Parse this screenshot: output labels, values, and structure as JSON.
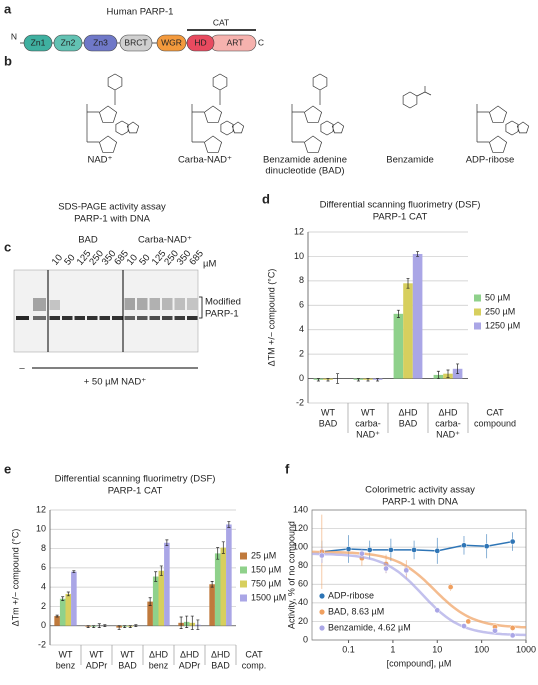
{
  "panel_labels": [
    "a",
    "b",
    "c",
    "d",
    "e",
    "f"
  ],
  "domain_map": {
    "title": "Human PARP-1",
    "n_term": "N",
    "c_term": "C",
    "domains": [
      "Zn1",
      "Zn2",
      "Zn3",
      "BRCT",
      "WGR",
      "HD",
      "ART"
    ],
    "region": "CAT"
  },
  "structures": {
    "names": [
      [
        "NAD⁺"
      ],
      [
        "Carba-NAD⁺"
      ],
      [
        "Benzamide adenine",
        "dinucleotide (BAD)"
      ],
      [
        "Benzamide"
      ],
      [
        "ADP-ribose"
      ]
    ]
  },
  "gel": {
    "title": [
      "SDS-PAGE activity assay",
      "PARP-1 with DNA"
    ],
    "groups": [
      "BAD",
      "Carba-NAD⁺"
    ],
    "concentrations": [
      10,
      50,
      125,
      250,
      350,
      685
    ],
    "unit": "µM",
    "band_labels": [
      "Modified",
      "PARP-1"
    ],
    "control": "–",
    "treatment": "+ 50 µM NAD⁺"
  },
  "chart_data": [
    {
      "type": "bar",
      "title": [
        "Differential scanning fluorimetry (DSF)",
        "PARP-1 CAT"
      ],
      "ylabel": "ΔTM +/− compound (°C)",
      "xlabel": [
        "CAT",
        "compound"
      ],
      "categories": [
        [
          "WT",
          "BAD"
        ],
        [
          "WT",
          "carba-",
          "NAD⁺"
        ],
        [
          "ΔHD",
          "BAD"
        ],
        [
          "ΔHD",
          "carba-",
          "NAD⁺"
        ]
      ],
      "series": [
        {
          "name": "50 µM",
          "color": "#8fd18b",
          "values": [
            -0.1,
            -0.1,
            5.3,
            0.3
          ],
          "errors": [
            0.1,
            0.1,
            0.3,
            0.3
          ]
        },
        {
          "name": "250 µM",
          "color": "#d7cf5e",
          "values": [
            -0.1,
            -0.1,
            7.8,
            0.4
          ],
          "errors": [
            0.1,
            0.1,
            0.4,
            0.3
          ]
        },
        {
          "name": "1250 µM",
          "color": "#aaa6e6",
          "values": [
            0.0,
            -0.1,
            10.2,
            0.8
          ],
          "errors": [
            0.4,
            0.1,
            0.2,
            0.4
          ]
        }
      ],
      "ylim": [
        -2,
        12
      ],
      "yticks": [
        -2,
        0,
        2,
        4,
        6,
        8,
        10,
        12
      ],
      "grid": true,
      "legend": "right"
    },
    {
      "type": "bar",
      "title": [
        "Differential scanning fluorimetry (DSF)",
        "PARP-1 CAT"
      ],
      "ylabel": "ΔTm +/− compound (°C)",
      "xlabel": [
        "CAT",
        "comp."
      ],
      "categories": [
        [
          "WT",
          "benz"
        ],
        [
          "WT",
          "ADPr"
        ],
        [
          "WT",
          "BAD"
        ],
        [
          "ΔHD",
          "benz"
        ],
        [
          "ΔHD",
          "ADPr"
        ],
        [
          "ΔHD",
          "BAD"
        ]
      ],
      "series": [
        {
          "name": "25 µM",
          "color": "#c07a3c",
          "values": [
            1.0,
            -0.1,
            -0.2,
            2.5,
            0.3,
            4.3
          ],
          "errors": [
            0.1,
            0.1,
            0.2,
            0.4,
            0.6,
            0.3
          ]
        },
        {
          "name": "150 µM",
          "color": "#8fd18b",
          "values": [
            2.8,
            -0.1,
            -0.1,
            5.1,
            0.4,
            7.5
          ],
          "errors": [
            0.2,
            0.1,
            0.1,
            0.5,
            0.6,
            0.6
          ]
        },
        {
          "name": "750 µM",
          "color": "#d7cf5e",
          "values": [
            3.3,
            0.0,
            -0.1,
            5.7,
            0.3,
            8.1
          ],
          "errors": [
            0.2,
            0.2,
            0.1,
            0.5,
            0.7,
            0.6
          ]
        },
        {
          "name": "1500 µM",
          "color": "#aaa6e6",
          "values": [
            5.6,
            0.0,
            0.0,
            8.6,
            0.1,
            10.5
          ],
          "errors": [
            0.1,
            0.1,
            0.1,
            0.3,
            0.5,
            0.3
          ]
        }
      ],
      "ylim": [
        -2,
        12
      ],
      "yticks": [
        -2,
        0,
        2,
        4,
        6,
        8,
        10,
        12
      ],
      "grid": true,
      "legend": "right"
    },
    {
      "type": "scatter",
      "title": [
        "Colorimetric activity assay",
        "PARP-1 with DNA"
      ],
      "xlabel": "[compound], µM",
      "ylabel": "Activity, % of no compound",
      "xscale": "log",
      "xlim": [
        0.015,
        1000
      ],
      "xticks": [
        0.1,
        1,
        10,
        100,
        1000
      ],
      "ylim": [
        0,
        140
      ],
      "yticks": [
        0,
        20,
        40,
        60,
        80,
        100,
        120,
        140
      ],
      "grid": true,
      "legend": "lower left",
      "series": [
        {
          "name": "ADP-ribose",
          "color": "#2e75b6",
          "fit": "line",
          "x": [
            0.025,
            0.1,
            0.3,
            0.9,
            3,
            10,
            40,
            130,
            500
          ],
          "values": [
            95,
            98,
            97,
            97,
            97,
            96,
            102,
            101,
            106
          ],
          "errors": [
            12,
            15,
            10,
            12,
            10,
            14,
            10,
            13,
            10
          ]
        },
        {
          "name": "BAD, 8.63 µM",
          "color": "#f0a060",
          "fit": "logistic",
          "ic50": 8.63,
          "x": [
            0.025,
            0.2,
            0.7,
            2,
            20,
            50,
            200,
            500
          ],
          "values": [
            95,
            88,
            82,
            76,
            57,
            20,
            14,
            13
          ],
          "errors": [
            40,
            8,
            10,
            10,
            4,
            3,
            4,
            3
          ]
        },
        {
          "name": "Benzamide, 4.62 µM",
          "color": "#aaa6e6",
          "fit": "logistic",
          "ic50": 4.62,
          "x": [
            0.025,
            0.2,
            0.7,
            2,
            10,
            40,
            200,
            500
          ],
          "values": [
            91,
            93,
            77,
            75,
            32,
            15,
            10,
            5
          ],
          "errors": [
            8,
            5,
            5,
            5,
            3,
            3,
            3,
            3
          ]
        }
      ]
    }
  ]
}
